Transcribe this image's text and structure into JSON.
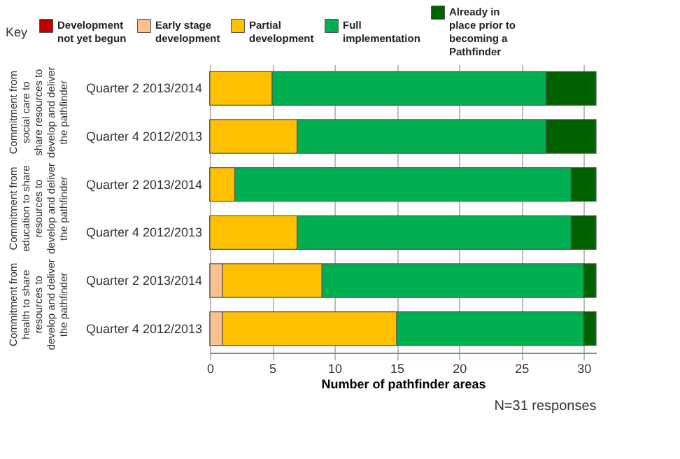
{
  "chart_data": {
    "type": "bar",
    "orientation": "horizontal",
    "stacked": true,
    "categories": [
      "Quarter 2 2013/2014",
      "Quarter 4  2012/2013",
      "Quarter 2 2013/2014",
      "Quarter 4  2012/2013",
      "Quarter 2 2013/2014",
      "Quarter 4  2012/2013"
    ],
    "series": [
      {
        "name": "Development not yet begun",
        "color": "#c00000",
        "values": [
          0,
          0,
          0,
          0,
          0,
          0
        ]
      },
      {
        "name": "Early stage development",
        "color": "#fac090",
        "values": [
          0,
          0,
          0,
          0,
          1,
          1
        ]
      },
      {
        "name": "Partial development",
        "color": "#ffc000",
        "values": [
          5,
          7,
          2,
          7,
          8,
          14
        ]
      },
      {
        "name": "Full implementation",
        "color": "#00b050",
        "values": [
          22,
          20,
          27,
          22,
          21,
          15
        ]
      },
      {
        "name": "Already in place prior to becoming a Pathfinder",
        "color": "#006100",
        "values": [
          4,
          4,
          2,
          2,
          1,
          1
        ]
      }
    ],
    "xlabel": "Number of pathfinder areas",
    "xlim": [
      0,
      31
    ],
    "xticks": [
      0,
      5,
      10,
      15,
      20,
      25,
      30
    ],
    "grid": "x",
    "legend": "top",
    "legend_title": "Key",
    "annotations": [
      "Commitment from social care to share resources to develop and deliver the pathfinder",
      "Commitment from education to share resources to develop and deliver the pathfinder",
      "Commitment from health to share resources to develop and deliver the pathfinder",
      "N=31 responses"
    ]
  }
}
